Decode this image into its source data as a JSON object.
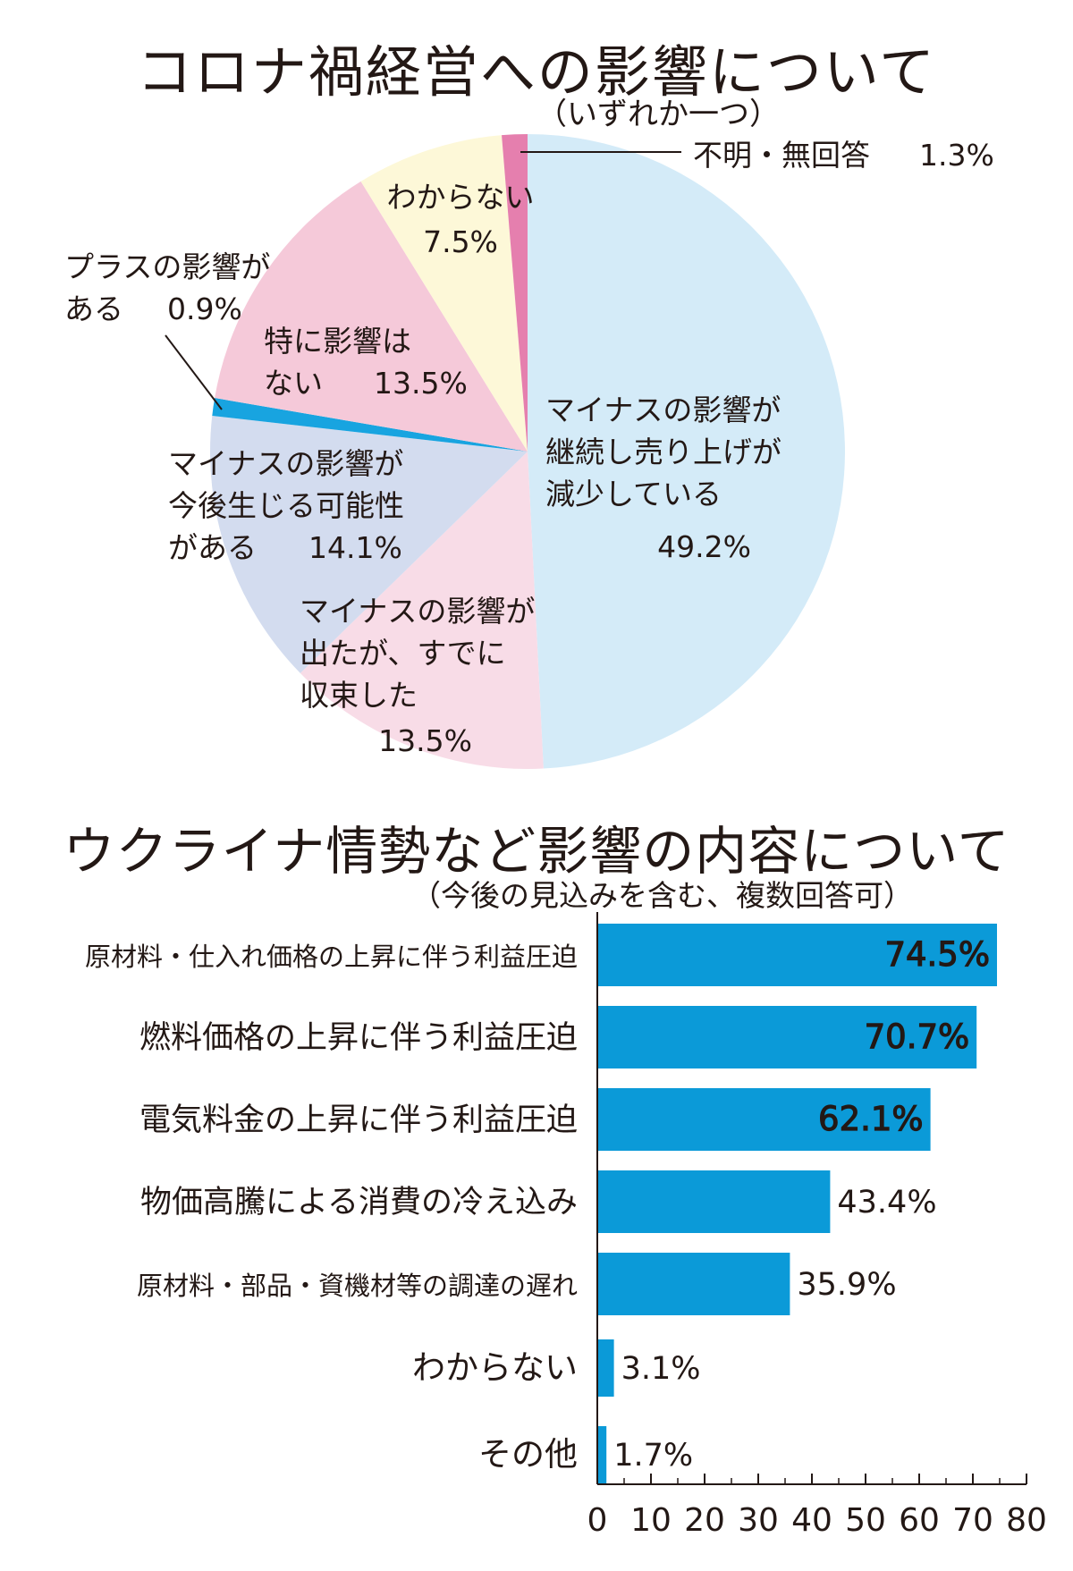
{
  "chart_data": [
    {
      "type": "pie",
      "title": "コロナ禍経営への影響について",
      "subtitle": "（いずれか一つ）",
      "slices": [
        {
          "label": [
            "マイナスの影響が",
            "継続し売り上げが",
            "減少している"
          ],
          "value_text": "49.2%",
          "value": 49.2,
          "color": "#d4ebf8"
        },
        {
          "label": [
            "マイナスの影響が",
            "出たが、すでに",
            "収束した"
          ],
          "value_text": "13.5%",
          "value": 13.5,
          "color": "#f8dce7"
        },
        {
          "label": [
            "マイナスの影響が",
            "今後生じる可能性",
            "がある"
          ],
          "value_text": "14.1%",
          "value": 14.1,
          "color": "#d3dcef"
        },
        {
          "label": [
            "プラスの影響が",
            "ある"
          ],
          "value_text": "0.9%",
          "value": 0.9,
          "color": "#18a4e0"
        },
        {
          "label": [
            "特に影響は",
            "ない"
          ],
          "value_text": "13.5%",
          "value": 13.5,
          "color": "#f5c9d9"
        },
        {
          "label": [
            "わからない"
          ],
          "value_text": "7.5%",
          "value": 7.5,
          "color": "#fdf8d8"
        },
        {
          "label": [
            "不明・無回答"
          ],
          "value_text": "1.3%",
          "value": 1.3,
          "color": "#e57fae"
        }
      ]
    },
    {
      "type": "bar",
      "orientation": "horizontal",
      "title": "ウクライナ情勢など影響の内容について",
      "subtitle": "（今後の見込みを含む、複数回答可）",
      "categories": [
        "原材料・仕入れ価格の上昇に伴う利益圧迫",
        "燃料価格の上昇に伴う利益圧迫",
        "電気料金の上昇に伴う利益圧迫",
        "物価高騰による消費の冷え込み",
        "原材料・部品・資機材等の調達の遅れ",
        "わからない",
        "その他"
      ],
      "values": [
        74.5,
        70.7,
        62.1,
        43.4,
        35.9,
        3.1,
        1.7
      ],
      "value_labels": [
        "74.5%",
        "70.7%",
        "62.1%",
        "43.4%",
        "35.9%",
        "3.1%",
        "1.7%"
      ],
      "xlim": [
        0,
        80
      ],
      "ticks": [
        "0",
        "10",
        "20",
        "30",
        "40",
        "50",
        "60",
        "70",
        "80"
      ],
      "bar_color": "#0b9ad8"
    }
  ]
}
